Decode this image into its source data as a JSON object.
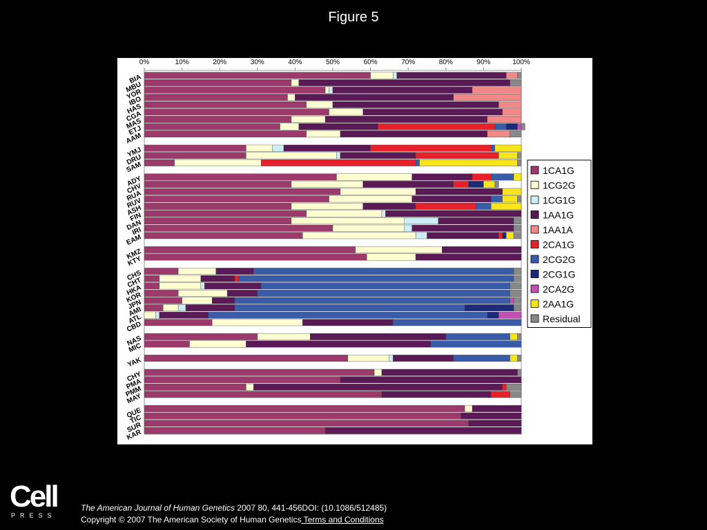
{
  "figure_title": "Figure 5",
  "footer": {
    "journal": "The American Journal of Human Genetics",
    "citation": " 2007 80, 441-456DOI: (10.1086/512485)",
    "copyright": "Copyright © 2007 The American Society of Human Genetics",
    "terms_link": " Terms and Conditions"
  },
  "logo": {
    "main": "Cell",
    "sub": "PRESS"
  },
  "chart_data": {
    "type": "bar",
    "orientation": "horizontal",
    "stacked": true,
    "percent": true,
    "x_ticks": [
      "0%",
      "10%",
      "20%",
      "30%",
      "40%",
      "50%",
      "60%",
      "70%",
      "80%",
      "90%",
      "100%"
    ],
    "xlim": [
      0,
      100
    ],
    "legend_position": "right",
    "legend": [
      {
        "name": "1CA1G",
        "color": "#9b3a6b"
      },
      {
        "name": "1CG2G",
        "color": "#ffffd2"
      },
      {
        "name": "1CG1G",
        "color": "#cdeef5"
      },
      {
        "name": "1AA1G",
        "color": "#5a1a55"
      },
      {
        "name": "1AA1A",
        "color": "#f08888"
      },
      {
        "name": "2CA1G",
        "color": "#e8202a"
      },
      {
        "name": "2CG2G",
        "color": "#3a5ca8"
      },
      {
        "name": "2CG1G",
        "color": "#1e2a78"
      },
      {
        "name": "2CA2G",
        "color": "#c24fb2"
      },
      {
        "name": "2AA1G",
        "color": "#f8e61a"
      },
      {
        "name": "Residual",
        "color": "#888888"
      }
    ],
    "groups": [
      {
        "rows": [
          {
            "label": "BIA",
            "values": [
              60,
              6,
              1,
              29,
              3,
              0,
              0,
              0,
              0,
              0,
              1
            ]
          },
          {
            "label": "MBU",
            "values": [
              39,
              2,
              0,
              56,
              0,
              0,
              0,
              0,
              0,
              0,
              3
            ]
          },
          {
            "label": "YOR",
            "values": [
              48,
              1,
              1,
              37,
              13,
              0,
              0,
              0,
              0,
              0,
              0
            ]
          },
          {
            "label": "IBO",
            "values": [
              38,
              2,
              0,
              42,
              18,
              0,
              0,
              0,
              0,
              0,
              0
            ]
          },
          {
            "label": "HAS",
            "values": [
              43,
              7,
              0,
              44,
              6,
              0,
              0,
              0,
              0,
              0,
              0
            ]
          },
          {
            "label": "CGA",
            "values": [
              49,
              9,
              0,
              37,
              5,
              0,
              0,
              0,
              0,
              0,
              0
            ]
          },
          {
            "label": "MAS",
            "values": [
              39,
              9,
              0,
              43,
              9,
              0,
              0,
              0,
              0,
              0,
              0
            ]
          },
          {
            "label": "ETJ",
            "values": [
              36,
              5,
              0,
              21,
              0,
              31,
              3,
              3,
              1,
              0,
              1
            ]
          },
          {
            "label": "AAM",
            "values": [
              43,
              9,
              0,
              39,
              6,
              0,
              0,
              0,
              0,
              0,
              3
            ]
          }
        ]
      },
      {
        "rows": [
          {
            "label": "YMJ",
            "values": [
              27,
              7,
              3,
              23,
              0,
              32,
              1,
              0,
              0,
              7,
              0
            ]
          },
          {
            "label": "DRU",
            "values": [
              27,
              24,
              1,
              20,
              0,
              22,
              0,
              0,
              0,
              5,
              1
            ]
          },
          {
            "label": "SAM",
            "values": [
              8,
              23,
              0,
              0,
              0,
              41,
              1,
              0,
              0,
              26,
              1
            ]
          }
        ]
      },
      {
        "rows": [
          {
            "label": "ADY",
            "values": [
              51,
              20,
              0,
              16,
              0,
              5,
              6,
              0,
              0,
              2,
              0
            ]
          },
          {
            "label": "CHV",
            "values": [
              39,
              19,
              0,
              24,
              0,
              4,
              0,
              4,
              0,
              3,
              1
            ]
          },
          {
            "label": "RUA",
            "values": [
              52,
              20,
              0,
              23,
              0,
              0,
              0,
              0,
              0,
              5,
              0
            ]
          },
          {
            "label": "RUV",
            "values": [
              49,
              22,
              0,
              21,
              0,
              0,
              3,
              0,
              0,
              4,
              1
            ]
          },
          {
            "label": "ASH",
            "values": [
              39,
              19,
              0,
              14,
              0,
              16,
              4,
              0,
              0,
              8,
              0
            ]
          },
          {
            "label": "FIN",
            "values": [
              43,
              20,
              1,
              36,
              0,
              0,
              0,
              0,
              0,
              0,
              0
            ]
          },
          {
            "label": "DAN",
            "values": [
              39,
              30,
              9,
              20,
              0,
              0,
              0,
              0,
              0,
              0,
              2
            ]
          },
          {
            "label": "IRI",
            "values": [
              50,
              19,
              2,
              27,
              0,
              0,
              0,
              0,
              0,
              0,
              2
            ]
          },
          {
            "label": "EAM",
            "values": [
              42,
              30,
              3,
              19,
              0,
              1,
              0,
              1,
              0,
              2,
              2
            ]
          }
        ]
      },
      {
        "rows": [
          {
            "label": "KMZ",
            "values": [
              56,
              23,
              0,
              21,
              0,
              0,
              0,
              0,
              0,
              0,
              0
            ]
          },
          {
            "label": "KTY",
            "values": [
              59,
              13,
              0,
              28,
              0,
              0,
              0,
              0,
              0,
              0,
              0
            ]
          }
        ]
      },
      {
        "rows": [
          {
            "label": "CHS",
            "values": [
              9,
              10,
              0,
              10,
              0,
              0,
              69,
              0,
              0,
              0,
              2
            ]
          },
          {
            "label": "CHT",
            "values": [
              4,
              11,
              0,
              9,
              0,
              1,
              73,
              0,
              0,
              0,
              2
            ]
          },
          {
            "label": "HKA",
            "values": [
              4,
              11,
              1,
              15,
              0,
              0,
              66,
              0,
              0,
              0,
              3
            ]
          },
          {
            "label": "KOR",
            "values": [
              9,
              13,
              0,
              8,
              0,
              0,
              67,
              0,
              0,
              0,
              3
            ]
          },
          {
            "label": "JPN",
            "values": [
              10,
              8,
              0,
              6,
              0,
              0,
              73,
              0,
              1,
              0,
              2
            ]
          },
          {
            "label": "AMI",
            "values": [
              5,
              4,
              2,
              13,
              0,
              0,
              61,
              13,
              0,
              0,
              2
            ]
          },
          {
            "label": "ATL",
            "values": [
              0,
              3,
              1,
              13,
              0,
              0,
              74,
              3,
              6,
              0,
              0
            ]
          },
          {
            "label": "CBD",
            "values": [
              18,
              24,
              0,
              24,
              0,
              0,
              34,
              0,
              0,
              0,
              0
            ]
          }
        ]
      },
      {
        "rows": [
          {
            "label": "NAS",
            "values": [
              30,
              14,
              0,
              36,
              0,
              0,
              17,
              0,
              0,
              2,
              1
            ]
          },
          {
            "label": "MIC",
            "values": [
              12,
              15,
              0,
              49,
              0,
              0,
              24,
              0,
              0,
              0,
              0
            ]
          }
        ]
      },
      {
        "rows": [
          {
            "label": "YAK",
            "values": [
              54,
              11,
              1,
              16,
              0,
              0,
              15,
              0,
              0,
              2,
              1
            ]
          }
        ]
      },
      {
        "rows": [
          {
            "label": "CHY",
            "values": [
              61,
              2,
              0,
              36,
              0,
              0,
              0,
              0,
              0,
              0,
              1
            ]
          },
          {
            "label": "PMA",
            "values": [
              52,
              0,
              0,
              48,
              0,
              0,
              0,
              0,
              0,
              0,
              0
            ]
          },
          {
            "label": "PMM",
            "values": [
              27,
              2,
              0,
              66,
              0,
              1,
              0,
              0,
              0,
              0,
              4
            ]
          },
          {
            "label": "MAY",
            "values": [
              63,
              0,
              0,
              29,
              0,
              5,
              0,
              0,
              0,
              0,
              3
            ]
          }
        ]
      },
      {
        "rows": [
          {
            "label": "QUE",
            "values": [
              85,
              2,
              0,
              13,
              0,
              0,
              0,
              0,
              0,
              0,
              0
            ]
          },
          {
            "label": "TIC",
            "values": [
              84,
              0,
              0,
              16,
              0,
              0,
              0,
              0,
              0,
              0,
              0
            ]
          },
          {
            "label": "SUR",
            "values": [
              86,
              0,
              0,
              14,
              0,
              0,
              0,
              0,
              0,
              0,
              0
            ]
          },
          {
            "label": "KAR",
            "values": [
              48,
              0,
              0,
              52,
              0,
              0,
              0,
              0,
              0,
              0,
              0
            ]
          }
        ]
      }
    ]
  }
}
